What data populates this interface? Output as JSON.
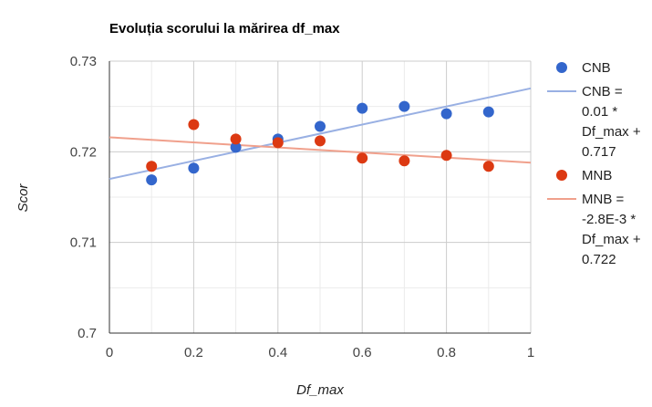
{
  "chart_data": {
    "type": "scatter",
    "title": "Evoluția scorului la mărirea df_max",
    "xlabel": "Df_max",
    "ylabel": "Scor",
    "xlim": [
      0,
      1
    ],
    "ylim": [
      0.7,
      0.73
    ],
    "x_ticks": [
      "0",
      "0.2",
      "0.4",
      "0.6",
      "0.8",
      "1"
    ],
    "y_ticks": [
      "0.73",
      "0.72",
      "0.71",
      "0.7"
    ],
    "grid": true,
    "legend_position": "right",
    "series": [
      {
        "name": "CNB",
        "color": "#3366cc",
        "x": [
          0.1,
          0.2,
          0.3,
          0.4,
          0.5,
          0.6,
          0.7,
          0.8,
          0.9
        ],
        "y": [
          0.7169,
          0.7182,
          0.7205,
          0.7214,
          0.7228,
          0.7248,
          0.725,
          0.7242,
          0.7244
        ]
      },
      {
        "name": "MNB",
        "color": "#dc3912",
        "x": [
          0.1,
          0.2,
          0.3,
          0.4,
          0.5,
          0.6,
          0.7,
          0.8,
          0.9
        ],
        "y": [
          0.7184,
          0.723,
          0.7214,
          0.721,
          0.7212,
          0.7193,
          0.719,
          0.7196,
          0.7184
        ]
      }
    ],
    "trendlines": [
      {
        "color": "#99b0e3",
        "slope": 0.01,
        "intercept": 0.717,
        "label_lines": [
          "CNB =",
          "0.01 *",
          "Df_max +",
          "0.717"
        ]
      },
      {
        "color": "#f0a08c",
        "slope": -0.0028,
        "intercept": 0.7216,
        "label_lines": [
          "MNB =",
          "-2.8E-3 *",
          "Df_max +",
          "0.722"
        ]
      }
    ]
  }
}
